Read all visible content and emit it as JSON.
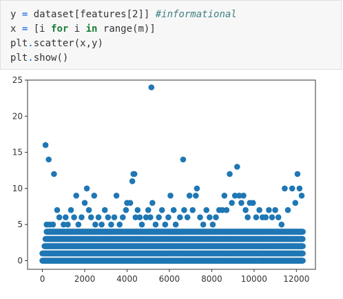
{
  "code_cell": {
    "lines": [
      {
        "tokens": [
          {
            "text": "y ",
            "kind": "plain"
          },
          {
            "text": "=",
            "kind": "op"
          },
          {
            "text": " dataset[features[2]] ",
            "kind": "plain"
          },
          {
            "text": "#informational",
            "kind": "comment"
          }
        ]
      },
      {
        "tokens": [
          {
            "text": "x ",
            "kind": "plain"
          },
          {
            "text": "=",
            "kind": "op"
          },
          {
            "text": " [i ",
            "kind": "plain"
          },
          {
            "text": "for",
            "kind": "keyword"
          },
          {
            "text": " i ",
            "kind": "plain"
          },
          {
            "text": "in",
            "kind": "keyword"
          },
          {
            "text": " range(m)]",
            "kind": "plain"
          }
        ]
      },
      {
        "tokens": [
          {
            "text": "plt",
            "kind": "plain"
          },
          {
            "text": ".",
            "kind": "op"
          },
          {
            "text": "scatter(x,y)",
            "kind": "plain"
          }
        ]
      },
      {
        "tokens": [
          {
            "text": "plt",
            "kind": "plain"
          },
          {
            "text": ".",
            "kind": "op"
          },
          {
            "text": "show()",
            "kind": "plain"
          }
        ]
      }
    ]
  },
  "colors": {
    "marker": "#1f77b4",
    "axes": "#333333",
    "cell_background": "#f7f7f7",
    "operator": "#055be0",
    "keyword": "#1a7f37",
    "comment": "#408080"
  },
  "chart_data": {
    "type": "scatter",
    "title": "",
    "xlabel": "",
    "ylabel": "",
    "xlim": [
      -700,
      12900
    ],
    "ylim": [
      -1.2,
      25
    ],
    "xticks": [
      0,
      2000,
      4000,
      6000,
      8000,
      10000,
      12000
    ],
    "yticks": [
      0,
      5,
      10,
      15,
      20,
      25
    ],
    "grid": false,
    "marker": "circle",
    "dense_bands": [
      {
        "y": 0,
        "x_range": [
          0,
          12300
        ]
      },
      {
        "y": 1,
        "x_range": [
          0,
          12300
        ]
      },
      {
        "y": 2,
        "x_range": [
          100,
          12300
        ]
      },
      {
        "y": 3,
        "x_range": [
          150,
          12300
        ]
      },
      {
        "y": 4,
        "x_range": [
          200,
          12300
        ]
      }
    ],
    "sparse_points": [
      [
        150,
        16
      ],
      [
        300,
        14
      ],
      [
        550,
        12
      ],
      [
        200,
        5
      ],
      [
        350,
        5
      ],
      [
        500,
        5
      ],
      [
        700,
        7
      ],
      [
        800,
        6
      ],
      [
        1000,
        5
      ],
      [
        1100,
        6
      ],
      [
        1200,
        5
      ],
      [
        1350,
        7
      ],
      [
        1500,
        6
      ],
      [
        1600,
        9
      ],
      [
        1700,
        5
      ],
      [
        1850,
        6
      ],
      [
        2000,
        8
      ],
      [
        2100,
        10
      ],
      [
        2200,
        7
      ],
      [
        2300,
        6
      ],
      [
        2450,
        9
      ],
      [
        2500,
        5
      ],
      [
        2650,
        6
      ],
      [
        2800,
        5
      ],
      [
        2950,
        7
      ],
      [
        3100,
        6
      ],
      [
        3250,
        5
      ],
      [
        3400,
        6
      ],
      [
        3500,
        9
      ],
      [
        3650,
        5
      ],
      [
        3800,
        6
      ],
      [
        3950,
        7
      ],
      [
        4000,
        8
      ],
      [
        4150,
        8
      ],
      [
        4250,
        11
      ],
      [
        4300,
        12
      ],
      [
        4350,
        12
      ],
      [
        4400,
        6
      ],
      [
        4500,
        7
      ],
      [
        4600,
        6
      ],
      [
        4700,
        5
      ],
      [
        4900,
        6
      ],
      [
        5000,
        7
      ],
      [
        5100,
        6
      ],
      [
        5150,
        24
      ],
      [
        5200,
        8
      ],
      [
        5350,
        5
      ],
      [
        5500,
        6
      ],
      [
        5650,
        7
      ],
      [
        5800,
        5
      ],
      [
        5950,
        6
      ],
      [
        6050,
        9
      ],
      [
        6200,
        7
      ],
      [
        6300,
        5
      ],
      [
        6500,
        6
      ],
      [
        6650,
        14
      ],
      [
        6700,
        7
      ],
      [
        6850,
        6
      ],
      [
        6950,
        9
      ],
      [
        7100,
        7
      ],
      [
        7250,
        9
      ],
      [
        7300,
        10
      ],
      [
        7450,
        6
      ],
      [
        7600,
        5
      ],
      [
        7750,
        7
      ],
      [
        7900,
        6
      ],
      [
        8050,
        5
      ],
      [
        8200,
        6
      ],
      [
        8350,
        7
      ],
      [
        8500,
        7
      ],
      [
        8600,
        9
      ],
      [
        8700,
        7
      ],
      [
        8850,
        12
      ],
      [
        8950,
        8
      ],
      [
        9100,
        9
      ],
      [
        9200,
        13
      ],
      [
        9300,
        9
      ],
      [
        9400,
        8
      ],
      [
        9500,
        9
      ],
      [
        9600,
        7
      ],
      [
        9700,
        6
      ],
      [
        9800,
        8
      ],
      [
        9950,
        8
      ],
      [
        10100,
        6
      ],
      [
        10250,
        7
      ],
      [
        10400,
        6
      ],
      [
        10550,
        6
      ],
      [
        10700,
        7
      ],
      [
        10850,
        6
      ],
      [
        11000,
        7
      ],
      [
        11150,
        6
      ],
      [
        11300,
        5
      ],
      [
        11450,
        10
      ],
      [
        11600,
        7
      ],
      [
        11800,
        10
      ],
      [
        11950,
        8
      ],
      [
        12050,
        12
      ],
      [
        12150,
        10
      ],
      [
        12250,
        9
      ]
    ]
  }
}
